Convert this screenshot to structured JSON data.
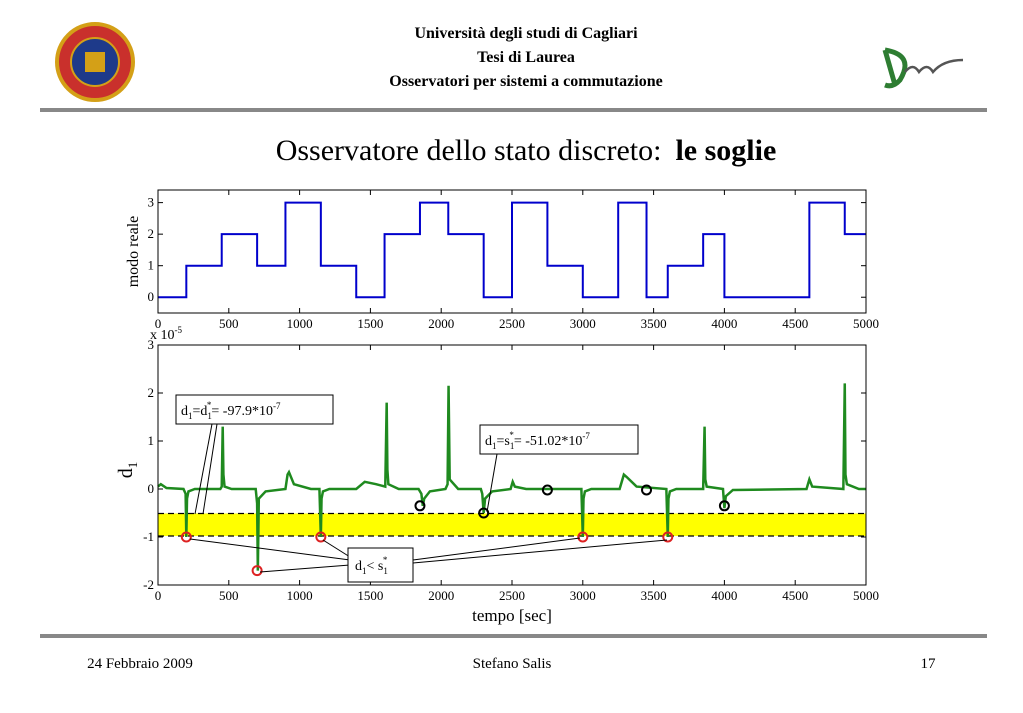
{
  "header": {
    "lines": [
      "Università degli studi di Cagliari",
      "Tesi di Laurea",
      "Osservatori per sistemi a commutazione"
    ]
  },
  "title": {
    "text": "Osservatore dello stato discreto:",
    "bold": "le soglie"
  },
  "footer": {
    "date": "24 Febbraio 2009",
    "author": "Stefano Salis",
    "page": "17"
  },
  "chart_data": [
    {
      "type": "step",
      "ylabel": "modo reale",
      "color": "#0000cc",
      "x": [
        0,
        200,
        450,
        700,
        900,
        1150,
        1400,
        1600,
        1850,
        2050,
        2300,
        2500,
        2750,
        3000,
        3250,
        3450,
        3600,
        3850,
        4000,
        4600,
        4850,
        5000
      ],
      "values": [
        0,
        1,
        2,
        1,
        3,
        1,
        0,
        2,
        3,
        2,
        0,
        3,
        1,
        0,
        3,
        0,
        1,
        2,
        0,
        3,
        2,
        2
      ],
      "xlim": [
        0,
        5000
      ],
      "ylim": [
        -0.5,
        3.4
      ],
      "xticks": [
        0,
        500,
        1000,
        1500,
        2000,
        2500,
        3000,
        3500,
        4000,
        4500,
        5000
      ],
      "yticks": [
        0,
        1,
        2,
        3
      ]
    },
    {
      "type": "line",
      "xlabel": "tempo [sec]",
      "ylabel": [
        "d",
        "1"
      ],
      "multiplier": [
        "x 10",
        "-5"
      ],
      "xlim": [
        0,
        5000
      ],
      "ylim": [
        -2,
        3
      ],
      "xticks": [
        0,
        500,
        1000,
        1500,
        2000,
        2500,
        3000,
        3500,
        4000,
        4500,
        5000
      ],
      "yticks": [
        -2,
        -1,
        0,
        1,
        2,
        3
      ],
      "thresholds": [
        -0.5102,
        -0.979
      ],
      "band_color": "#ffff00",
      "series": [
        {
          "color": "#1f8a1f",
          "x": [
            0,
            20,
            60,
            180,
            195,
            200,
            205,
            215,
            260,
            440,
            450,
            457,
            462,
            470,
            520,
            690,
            700,
            705,
            712,
            760,
            900,
            915,
            925,
            960,
            1080,
            1140,
            1150,
            1155,
            1165,
            1210,
            1400,
            1460,
            1540,
            1605,
            1615,
            1620,
            1627,
            1700,
            1840,
            1860,
            1870,
            1880,
            1920,
            2030,
            2045,
            2052,
            2060,
            2120,
            2280,
            2290,
            2300,
            2310,
            2360,
            2490,
            2505,
            2520,
            2600,
            2740,
            2760,
            2990,
            3000,
            3005,
            3015,
            3060,
            3260,
            3290,
            3310,
            3380,
            3590,
            3600,
            3605,
            3615,
            3660,
            3850,
            3860,
            3865,
            3875,
            3990,
            4000,
            4010,
            4060,
            4580,
            4600,
            4620,
            4840,
            4850,
            4855,
            4865,
            4950,
            5000
          ],
          "values": [
            0.05,
            0.1,
            0.02,
            0,
            -0.1,
            -1.0,
            -0.2,
            -0.05,
            0,
            0,
            0.05,
            1.3,
            0.3,
            0.05,
            0,
            0,
            -0.3,
            -1.7,
            -0.2,
            -0.05,
            0,
            0.3,
            0.35,
            0.1,
            0,
            0,
            -1.0,
            -0.2,
            -0.05,
            0,
            0,
            0.15,
            0.1,
            0.05,
            1.8,
            0.4,
            0.1,
            0,
            0,
            -0.1,
            -0.35,
            -0.2,
            -0.05,
            0,
            0.1,
            2.15,
            0.2,
            0,
            0,
            -0.1,
            -0.5,
            -0.2,
            -0.05,
            0,
            0.15,
            0.05,
            0,
            0,
            0,
            0,
            -1.0,
            -0.2,
            -0.05,
            0,
            0,
            0.3,
            0.25,
            0.05,
            0,
            -1.0,
            -0.2,
            -0.05,
            0,
            0,
            1.3,
            0.2,
            0.05,
            0,
            -0.4,
            -0.15,
            -0.02,
            0,
            0.2,
            0.05,
            0,
            2.2,
            0.3,
            0.1,
            0,
            0
          ]
        },
        {
          "type": "scatter",
          "color": "#dd2222",
          "x": [
            200,
            700,
            1150,
            3000,
            3600
          ],
          "values": [
            -1,
            -1.7,
            -1,
            -1,
            -1
          ]
        },
        {
          "type": "scatter",
          "color": "#000000",
          "x": [
            1850,
            2300,
            2750,
            3450,
            4000
          ],
          "values": [
            -0.35,
            -0.5,
            -0.02,
            -0.02,
            -0.35
          ]
        }
      ],
      "annotations": [
        [
          "d",
          "1",
          "=d",
          "1",
          "*",
          "= -97.9*10",
          "-7"
        ],
        [
          "d",
          "1",
          "=s",
          "1",
          "*",
          "= -51.02*10",
          "-7"
        ],
        [
          "d",
          "1",
          "< s",
          "1",
          "*"
        ]
      ]
    }
  ]
}
